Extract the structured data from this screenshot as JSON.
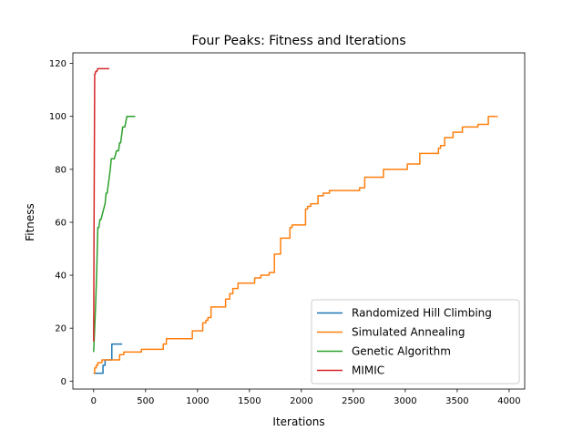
{
  "chart_data": {
    "type": "line",
    "title": "Four Peaks: Fitness and Iterations",
    "xlabel": "Iterations",
    "ylabel": "Fitness",
    "xlim": [
      -200,
      4150
    ],
    "ylim": [
      -3,
      124
    ],
    "xticks": [
      0,
      500,
      1000,
      1500,
      2000,
      2500,
      3000,
      3500,
      4000
    ],
    "yticks": [
      0,
      20,
      40,
      60,
      80,
      100,
      120
    ],
    "grid": false,
    "legend_position": "lower-right",
    "series": [
      {
        "name": "Randomized Hill Climbing",
        "color": "#1f77b4",
        "x": [
          0,
          90,
          90,
          110,
          110,
          175,
          175,
          275
        ],
        "y": [
          3,
          3,
          6,
          6,
          8,
          8,
          14,
          14
        ]
      },
      {
        "name": "Simulated Annealing",
        "color": "#ff7f0e",
        "x": [
          0,
          10,
          10,
          25,
          25,
          40,
          40,
          80,
          80,
          200,
          200,
          250,
          250,
          290,
          290,
          460,
          460,
          670,
          670,
          700,
          700,
          950,
          950,
          1050,
          1050,
          1080,
          1080,
          1100,
          1100,
          1130,
          1130,
          1270,
          1270,
          1310,
          1310,
          1340,
          1340,
          1390,
          1390,
          1550,
          1550,
          1610,
          1610,
          1690,
          1690,
          1740,
          1740,
          1800,
          1800,
          1890,
          1890,
          1910,
          1910,
          2040,
          2040,
          2060,
          2060,
          2090,
          2090,
          2160,
          2160,
          2210,
          2210,
          2270,
          2270,
          2560,
          2560,
          2610,
          2610,
          2790,
          2790,
          3020,
          3020,
          3140,
          3140,
          3320,
          3320,
          3340,
          3340,
          3380,
          3380,
          3460,
          3460,
          3550,
          3550,
          3700,
          3700,
          3800,
          3800,
          3890
        ],
        "y": [
          3,
          3,
          5,
          5,
          6,
          6,
          7,
          7,
          8,
          8,
          8,
          8,
          10,
          10,
          11,
          11,
          12,
          12,
          14,
          14,
          16,
          16,
          19,
          19,
          22,
          22,
          23,
          23,
          24,
          24,
          28,
          28,
          31,
          31,
          33,
          33,
          35,
          35,
          37,
          37,
          39,
          39,
          40,
          40,
          41,
          41,
          48,
          48,
          54,
          54,
          58,
          58,
          59,
          59,
          65,
          65,
          66,
          66,
          67,
          67,
          70,
          70,
          71,
          71,
          72,
          72,
          73,
          73,
          77,
          77,
          80,
          80,
          82,
          82,
          86,
          86,
          88,
          88,
          89,
          89,
          92,
          92,
          94,
          94,
          96,
          96,
          97,
          97,
          100,
          100
        ]
      },
      {
        "name": "Genetic Algorithm",
        "color": "#2ca02c",
        "x": [
          0,
          10,
          20,
          30,
          40,
          50,
          60,
          70,
          90,
          110,
          120,
          130,
          140,
          150,
          160,
          170,
          180,
          200,
          220,
          240,
          250,
          260,
          270,
          280,
          300,
          320,
          340,
          360,
          380,
          400
        ],
        "y": [
          11,
          20,
          30,
          42,
          58,
          58,
          61,
          61,
          64,
          67,
          71,
          71,
          74,
          77,
          80,
          84,
          84,
          84,
          87,
          87,
          90,
          90,
          93,
          96,
          96,
          100,
          100,
          100,
          100,
          100
        ]
      },
      {
        "name": "MIMIC",
        "color": "#d62728",
        "x": [
          0,
          5,
          10,
          15,
          20,
          30,
          40,
          60,
          80,
          100,
          120,
          150
        ],
        "y": [
          15,
          70,
          116,
          116,
          117,
          117,
          118,
          118,
          118,
          118,
          118,
          118
        ]
      }
    ]
  }
}
